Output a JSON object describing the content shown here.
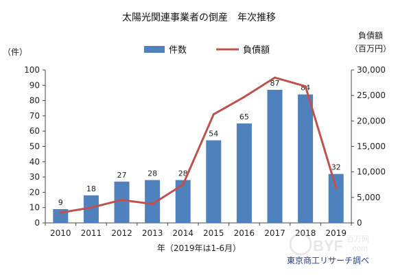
{
  "chart_data": {
    "type": "bar",
    "title": "太陽光関連事業者の倒産　年次推移",
    "categories": [
      "2010",
      "2011",
      "2012",
      "2013",
      "2014",
      "2015",
      "2016",
      "2017",
      "2018",
      "2019"
    ],
    "xlabel": "年（2019年は1-6月）",
    "left_axis_unit": "（件）",
    "right_axis_unit_line1": "負債額",
    "right_axis_unit_line2": "（百万円）",
    "left_ticks": [
      "0",
      "10",
      "20",
      "30",
      "40",
      "50",
      "60",
      "70",
      "80",
      "90",
      "100"
    ],
    "right_ticks": [
      "0",
      "5,000",
      "10,000",
      "15,000",
      "20,000",
      "25,000",
      "30,000"
    ],
    "ylim_left": [
      0,
      100
    ],
    "ylim_right": [
      0,
      30000
    ],
    "grid": false,
    "legend_position": "top-center",
    "series": [
      {
        "name": "件数",
        "type": "bar",
        "axis": "left",
        "color": "#4f81bd",
        "values": [
          9,
          18,
          27,
          28,
          28,
          54,
          65,
          87,
          84,
          32
        ],
        "labels": [
          "9",
          "18",
          "27",
          "28",
          "28",
          "54",
          "65",
          "87",
          "84",
          "32"
        ]
      },
      {
        "name": "負債額",
        "type": "line",
        "axis": "right",
        "color": "#c0504d",
        "values": [
          2000,
          3000,
          4500,
          3700,
          7500,
          21300,
          24700,
          28500,
          26800,
          6900
        ]
      }
    ],
    "source": "東京商工リサーチ調べ"
  },
  "watermark": {
    "brand": "BYF",
    "chinese": "百万网",
    "domain": ".com"
  }
}
